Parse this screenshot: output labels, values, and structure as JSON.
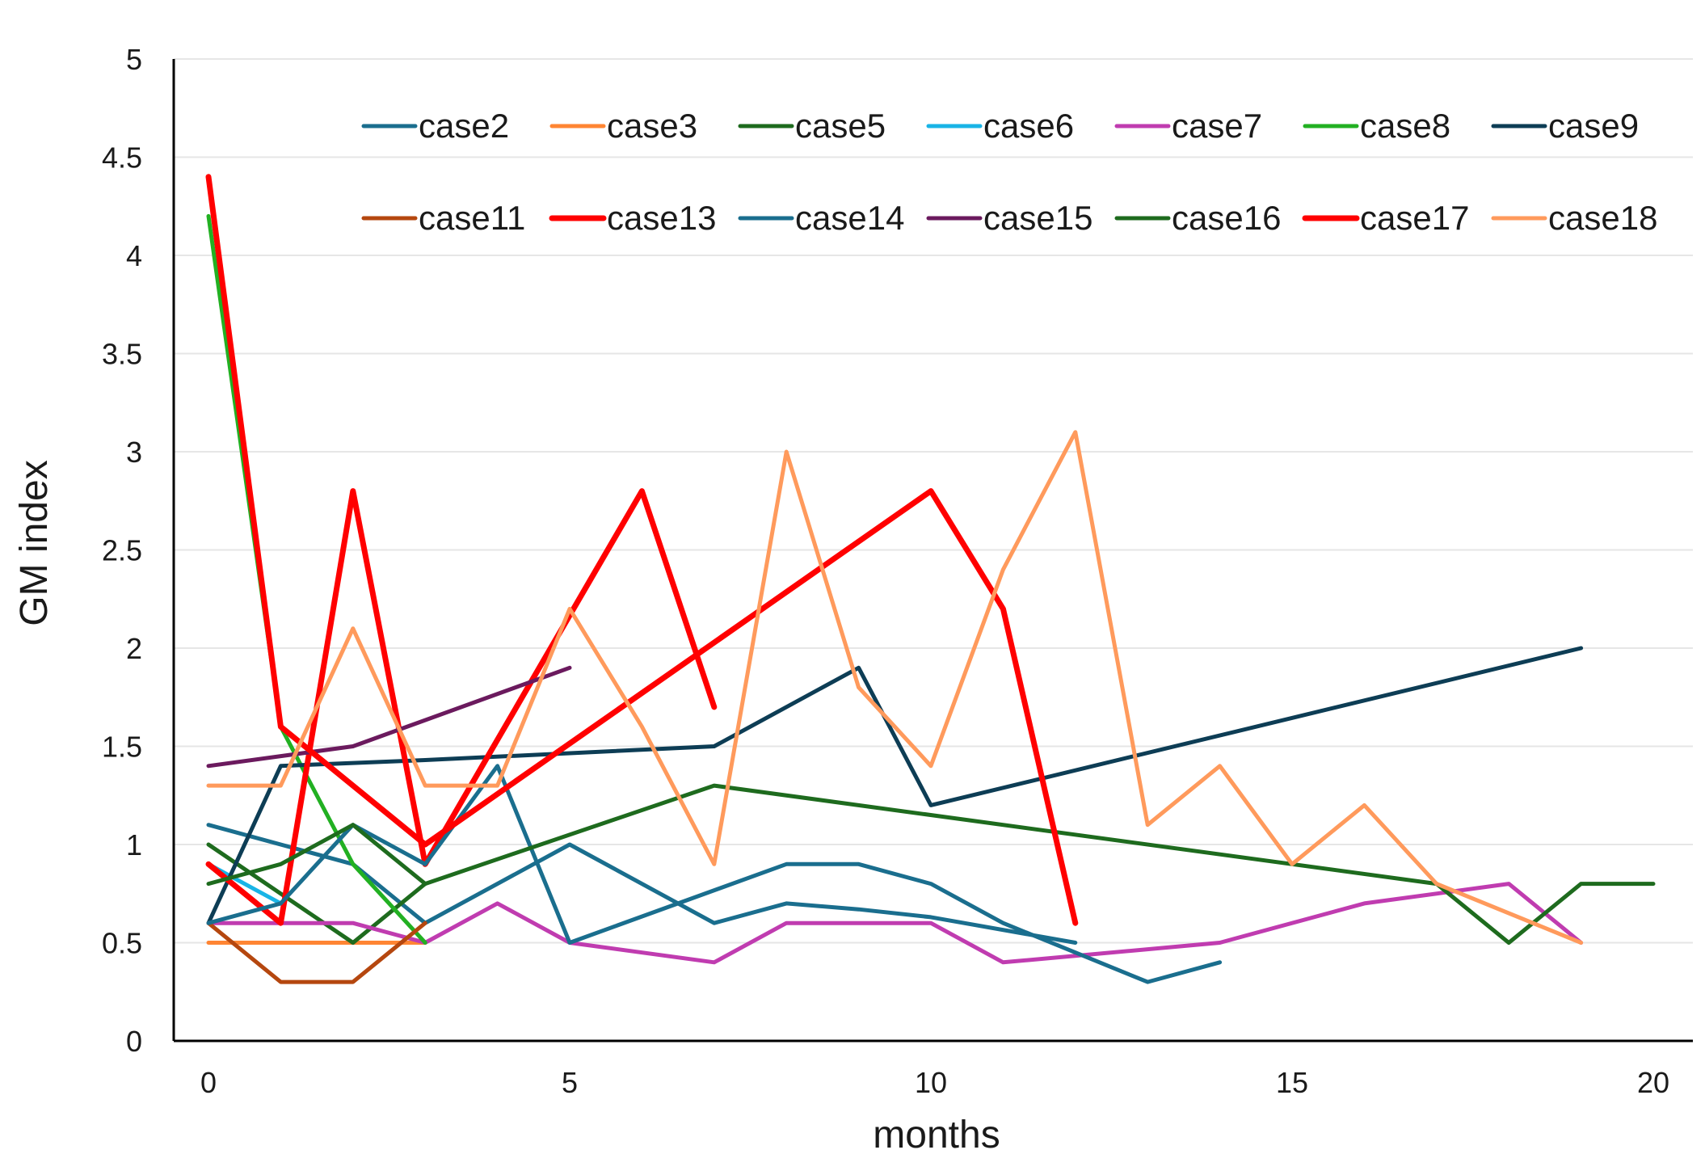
{
  "chart_data": {
    "type": "line",
    "title": "",
    "xlabel": "months",
    "ylabel": "GM index",
    "xlim": [
      0,
      20
    ],
    "ylim": [
      0,
      5
    ],
    "xticks": [
      0,
      5,
      10,
      15,
      20
    ],
    "xtick_labels": [
      "0",
      "5",
      "10",
      "15",
      "20"
    ],
    "yticks": [
      0,
      0.5,
      1,
      1.5,
      2,
      2.5,
      3,
      3.5,
      4,
      4.5,
      5
    ],
    "ytick_labels": [
      "0",
      "0.5",
      "1",
      "1.5",
      "2",
      "2.5",
      "3",
      "3.5",
      "4",
      "4.5",
      "5"
    ],
    "grid": "horizontal",
    "legend_position": "top-right",
    "series": [
      {
        "name": "case2",
        "color": "#1a6e8e",
        "width": "thin",
        "x": [
          0,
          2,
          3,
          5,
          7,
          8,
          9,
          10,
          12
        ],
        "y": [
          1.1,
          0.9,
          0.6,
          1.0,
          0.6,
          0.7,
          0.67,
          0.63,
          0.5
        ]
      },
      {
        "name": "case3",
        "color": "#ff8533",
        "width": "thin",
        "x": [
          0,
          3
        ],
        "y": [
          0.5,
          0.5
        ]
      },
      {
        "name": "case5",
        "color": "#1e6b1e",
        "width": "thin",
        "x": [
          0,
          1,
          2,
          3
        ],
        "y": [
          1.0,
          0.75,
          0.5,
          0.8
        ]
      },
      {
        "name": "case6",
        "color": "#19b4e6",
        "width": "thin",
        "x": [
          0,
          1
        ],
        "y": [
          0.9,
          0.7
        ]
      },
      {
        "name": "case7",
        "color": "#c03cb0",
        "width": "thin",
        "x": [
          0,
          2,
          3,
          4,
          5,
          7,
          8,
          10,
          11,
          14,
          16,
          18,
          19
        ],
        "y": [
          0.6,
          0.6,
          0.5,
          0.7,
          0.5,
          0.4,
          0.6,
          0.6,
          0.4,
          0.5,
          0.7,
          0.8,
          0.5
        ]
      },
      {
        "name": "case8",
        "color": "#22b022",
        "width": "thin",
        "x": [
          0,
          1,
          2,
          3
        ],
        "y": [
          4.2,
          1.6,
          0.9,
          0.5
        ]
      },
      {
        "name": "case9",
        "color": "#0d3d55",
        "width": "thin",
        "x": [
          0,
          1,
          3,
          7,
          9,
          10,
          19
        ],
        "y": [
          0.6,
          1.4,
          1.43,
          1.5,
          1.9,
          1.2,
          2.0
        ]
      },
      {
        "name": "case11",
        "color": "#b5470f",
        "width": "thin",
        "x": [
          0,
          1,
          2,
          3
        ],
        "y": [
          0.6,
          0.3,
          0.3,
          0.6
        ]
      },
      {
        "name": "case13",
        "color": "#ff0000",
        "width": "thick",
        "x": [
          0,
          1,
          2,
          3,
          6,
          7
        ],
        "y": [
          0.9,
          0.6,
          2.8,
          0.9,
          2.8,
          1.7
        ]
      },
      {
        "name": "case14",
        "color": "#1a6e8e",
        "width": "thin",
        "x": [
          0,
          1,
          2,
          3,
          4,
          5,
          8,
          9,
          10,
          11,
          13,
          14
        ],
        "y": [
          0.6,
          0.7,
          1.1,
          0.9,
          1.4,
          0.5,
          0.9,
          0.9,
          0.8,
          0.6,
          0.3,
          0.4
        ]
      },
      {
        "name": "case15",
        "color": "#6b1a5e",
        "width": "thin",
        "x": [
          0,
          2,
          5
        ],
        "y": [
          1.4,
          1.5,
          1.9
        ]
      },
      {
        "name": "case16",
        "color": "#1e6b1e",
        "width": "thin",
        "x": [
          0,
          1,
          2,
          3,
          7,
          17,
          18,
          19,
          20
        ],
        "y": [
          0.8,
          0.9,
          1.1,
          0.8,
          1.3,
          0.8,
          0.5,
          0.8,
          0.8
        ]
      },
      {
        "name": "case17",
        "color": "#ff0000",
        "width": "thick",
        "x": [
          0,
          1,
          3,
          10,
          11,
          12
        ],
        "y": [
          4.4,
          1.6,
          1.0,
          2.8,
          2.2,
          0.6
        ]
      },
      {
        "name": "case18",
        "color": "#ff9a5c",
        "width": "thin",
        "x": [
          0,
          1,
          2,
          3,
          4,
          5,
          6,
          7,
          8,
          9,
          10,
          11,
          12,
          13,
          14,
          15,
          16,
          17,
          19
        ],
        "y": [
          1.3,
          1.3,
          2.1,
          1.3,
          1.3,
          2.2,
          1.6,
          0.9,
          3.0,
          1.8,
          1.4,
          2.4,
          3.1,
          1.1,
          1.4,
          0.9,
          1.2,
          0.8,
          0.5
        ]
      }
    ]
  }
}
